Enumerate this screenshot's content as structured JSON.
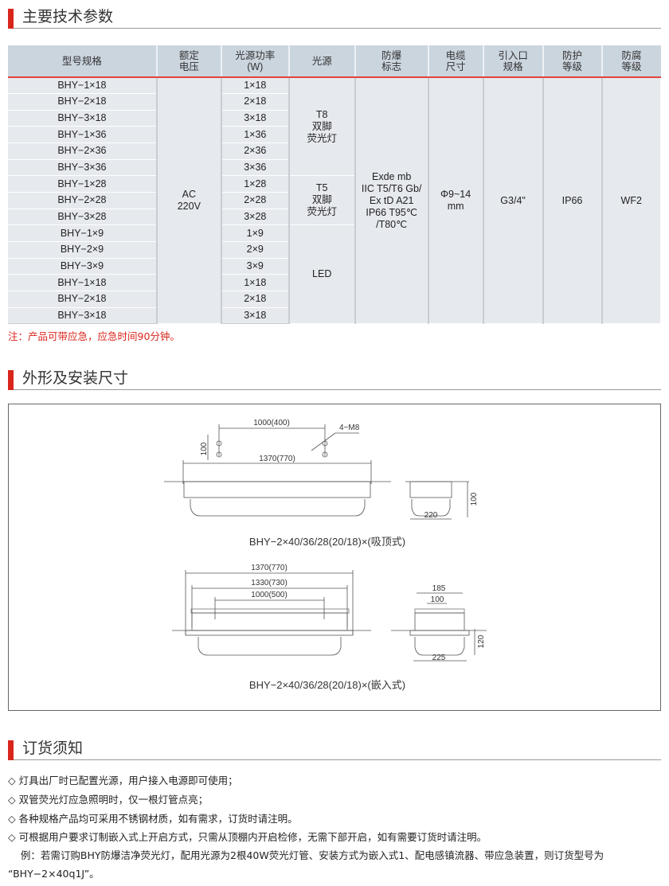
{
  "sections": {
    "params": "主要技术参数",
    "dims": "外形及安装尺寸",
    "order": "订货须知"
  },
  "table": {
    "headers": [
      "型号规格",
      "额定\n电压",
      "光源功率\n(W)",
      "光源",
      "防爆\n标志",
      "电缆\n尺寸",
      "引入口\n规格",
      "防护\n等级",
      "防腐\n等级"
    ],
    "models": [
      "BHY−1×18",
      "BHY−2×18",
      "BHY−3×18",
      "BHY−1×36",
      "BHY−2×36",
      "BHY−3×36",
      "BHY−1×28",
      "BHY−2×28",
      "BHY−3×28",
      "BHY−1×9",
      "BHY−2×9",
      "BHY−3×9",
      "BHY−1×18",
      "BHY−2×18",
      "BHY−3×18"
    ],
    "powers": [
      "1×18",
      "2×18",
      "3×18",
      "1×36",
      "2×36",
      "3×36",
      "1×28",
      "2×28",
      "3×28",
      "1×9",
      "2×9",
      "3×9",
      "1×18",
      "2×18",
      "3×18"
    ],
    "voltage": "AC\n220V",
    "sources": [
      "T8\n双脚\n荧光灯",
      "T5\n双脚\n荧光灯",
      "LED"
    ],
    "ex_mark": "Exde mb\nIIC T5/T6 Gb/\nEx tD A21\nIP66 T95℃\n/T80℃",
    "cable": "Φ9~14\nmm",
    "entry": "G3/4\"",
    "ip": "IP66",
    "wf": "WF2"
  },
  "note": "注：产品可带应急，应急时间90分钟。",
  "drawing": {
    "top": {
      "d1": "1000(400)",
      "d2": "4−M8",
      "d3": "100",
      "d4": "1370(770)",
      "d5": "100",
      "d6": "220",
      "caption": "BHY−2×40/36/28(20/18)×(吸顶式)"
    },
    "bottom": {
      "d1": "1370(770)",
      "d2": "1330(730)",
      "d3": "1000(500)",
      "d4": "185",
      "d5": "100",
      "d6": "120",
      "d7": "225",
      "caption": "BHY−2×40/36/28(20/18)×(嵌入式)"
    }
  },
  "order_notes": [
    "◇ 灯具出厂时已配置光源，用户接入电源即可使用；",
    "◇ 双管荧光灯应急照明时，仅一根灯管点亮；",
    "◇ 各种规格产品均可采用不锈钢材质，如有需求，订货时请注明。",
    "◇ 可根据用户要求订制嵌入式上开启方式，只需从顶棚内开启检修，无需下部开启，如有需要订货时请注明。",
    "    例：若需订购BHY防爆洁净荧光灯，配用光源为2根40W荧光灯管、安装方式为嵌入式1、配电感镇流器、带应急装置，则订货型号为",
    "“BHY−2×40q1J”。"
  ],
  "colors": {
    "accent": "#d9251c",
    "header_bg": "#cbd5de",
    "cell_bg": "#e6e9ee"
  }
}
